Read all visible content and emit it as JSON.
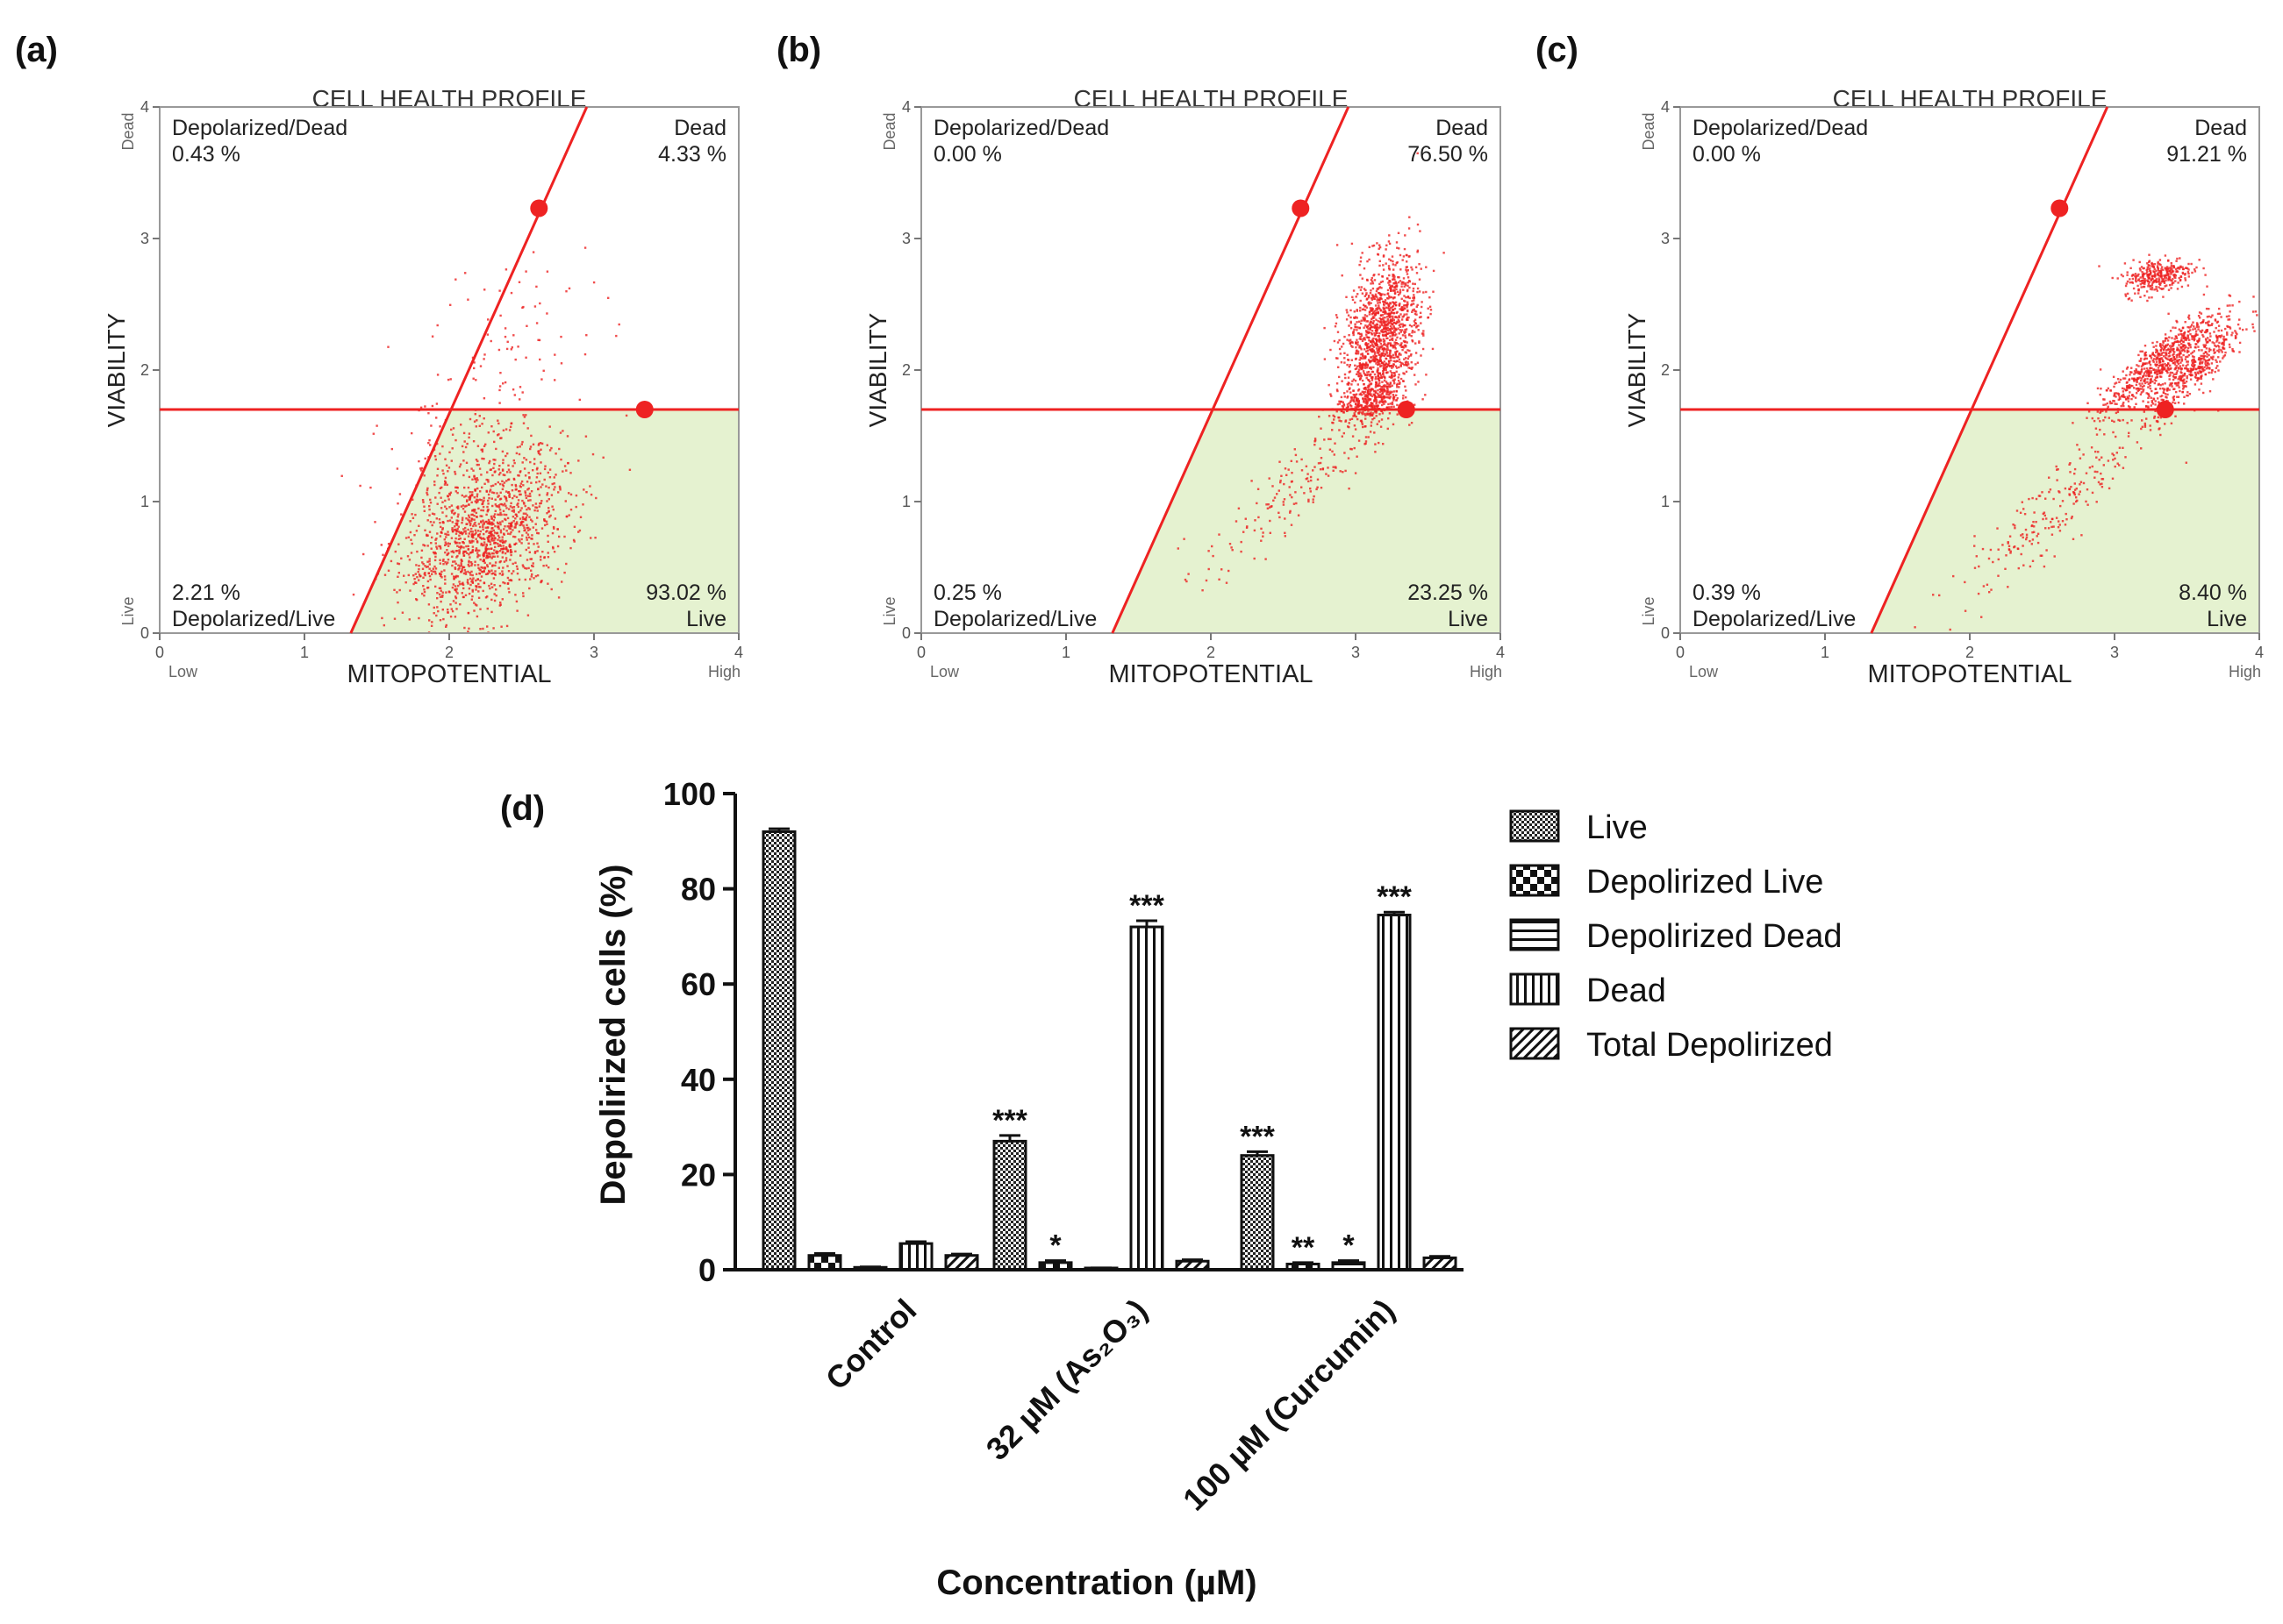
{
  "colors": {
    "red": "#ee2222",
    "live_fill": "#e5f2d0",
    "axis": "#444444",
    "bar_stroke": "#111111"
  },
  "chart_data": [
    {
      "type": "scatter",
      "panel": "(a)",
      "title": "CELL HEALTH PROFILE",
      "xlabel": "MITOPOTENTIAL",
      "ylabel": "VIABILITY",
      "xlim": [
        0,
        4
      ],
      "ylim": [
        0,
        4
      ],
      "xticks": [
        "0",
        "1",
        "2",
        "3",
        "4"
      ],
      "yticks": [
        "0",
        "1",
        "2",
        "3",
        "4"
      ],
      "x_low": "Low",
      "x_high": "High",
      "y_low": "Live",
      "y_high": "Dead",
      "gate_y": 1.7,
      "gate_line": [
        [
          1.32,
          0
        ],
        [
          2.95,
          4
        ]
      ],
      "gate_markers": [
        [
          2.62,
          3.23
        ],
        [
          3.35,
          1.7
        ]
      ],
      "quadrants": {
        "top_left": {
          "label": "Depolarized/Dead",
          "value": "0.43 %"
        },
        "top_right": {
          "label": "Dead",
          "value": "4.33 %"
        },
        "bottom_left": {
          "label": "Depolarized/Live",
          "value": "2.21 %"
        },
        "bottom_right": {
          "label": "Live",
          "value": "93.02 %"
        }
      },
      "clusters": [
        {
          "cx": 2.25,
          "cy": 0.72,
          "sx": 0.28,
          "sy": 0.3,
          "n": 1300,
          "rho": 0.4
        },
        {
          "cx": 2.15,
          "cy": 1.25,
          "sx": 0.3,
          "sy": 0.35,
          "n": 200,
          "rho": 0.3
        },
        {
          "cx": 2.5,
          "cy": 2.3,
          "sx": 0.3,
          "sy": 0.35,
          "n": 70,
          "rho": 0.2
        }
      ]
    },
    {
      "type": "scatter",
      "panel": "(b)",
      "title": "CELL HEALTH PROFILE",
      "xlabel": "MITOPOTENTIAL",
      "ylabel": "VIABILITY",
      "xlim": [
        0,
        4
      ],
      "ylim": [
        0,
        4
      ],
      "xticks": [
        "0",
        "1",
        "2",
        "3",
        "4"
      ],
      "yticks": [
        "0",
        "1",
        "2",
        "3",
        "4"
      ],
      "x_low": "Low",
      "x_high": "High",
      "y_low": "Live",
      "y_high": "Dead",
      "gate_y": 1.7,
      "gate_line": [
        [
          1.32,
          0
        ],
        [
          2.95,
          4
        ]
      ],
      "gate_markers": [
        [
          2.62,
          3.23
        ],
        [
          3.35,
          1.7
        ]
      ],
      "quadrants": {
        "top_left": {
          "label": "Depolarized/Dead",
          "value": "0.00 %"
        },
        "top_right": {
          "label": "Dead",
          "value": "76.50 %"
        },
        "bottom_left": {
          "label": "Depolarized/Live",
          "value": "0.25 %"
        },
        "bottom_right": {
          "label": "Live",
          "value": "23.25 %"
        }
      },
      "clusters": [
        {
          "cx": 3.18,
          "cy": 2.25,
          "sx": 0.13,
          "sy": 0.3,
          "n": 1400,
          "rho": 0.3
        },
        {
          "cx": 3.1,
          "cy": 1.75,
          "sx": 0.12,
          "sy": 0.08,
          "n": 250,
          "rho": 0.5
        },
        {
          "cx": 2.55,
          "cy": 1.05,
          "sx": 0.3,
          "sy": 0.3,
          "n": 170,
          "rho": 0.85
        }
      ]
    },
    {
      "type": "scatter",
      "panel": "(c)",
      "title": "CELL HEALTH PROFILE",
      "xlabel": "MITOPOTENTIAL",
      "ylabel": "VIABILITY",
      "xlim": [
        0,
        4
      ],
      "ylim": [
        0,
        4
      ],
      "xticks": [
        "0",
        "1",
        "2",
        "3",
        "4"
      ],
      "yticks": [
        "0",
        "1",
        "2",
        "3",
        "4"
      ],
      "x_low": "Low",
      "x_high": "High",
      "y_low": "Live",
      "y_high": "Dead",
      "gate_y": 1.7,
      "gate_line": [
        [
          1.32,
          0
        ],
        [
          2.95,
          4
        ]
      ],
      "gate_markers": [
        [
          2.62,
          3.23
        ],
        [
          3.35,
          1.7
        ]
      ],
      "quadrants": {
        "top_left": {
          "label": "Depolarized/Dead",
          "value": "0.00 %"
        },
        "top_right": {
          "label": "Dead",
          "value": "91.21 %"
        },
        "bottom_left": {
          "label": "Depolarized/Live",
          "value": "0.39 %"
        },
        "bottom_right": {
          "label": "Live",
          "value": "8.40 %"
        }
      },
      "clusters": [
        {
          "cx": 3.3,
          "cy": 2.72,
          "sx": 0.12,
          "sy": 0.07,
          "n": 320,
          "rho": 0.3
        },
        {
          "cx": 3.3,
          "cy": 2.05,
          "sx": 0.2,
          "sy": 0.2,
          "n": 650,
          "rho": 0.9
        },
        {
          "cx": 3.55,
          "cy": 2.0,
          "sx": 0.18,
          "sy": 0.2,
          "n": 420,
          "rho": 0.9
        },
        {
          "cx": 2.6,
          "cy": 0.95,
          "sx": 0.35,
          "sy": 0.35,
          "n": 220,
          "rho": 0.9
        }
      ]
    },
    {
      "type": "bar",
      "panel": "(d)",
      "ylabel": "Depolirized cells (%)",
      "xlabel": "Concentration (µM)",
      "ylim": [
        0,
        100
      ],
      "yticks": [
        "0",
        "20",
        "40",
        "60",
        "80",
        "100"
      ],
      "categories": [
        "Control",
        "32 µM (As₂O₃)",
        "100 µM (Curcumin)"
      ],
      "series": [
        {
          "name": "Live",
          "pattern": "dots",
          "values": [
            92,
            27,
            24
          ],
          "errors": [
            0.6,
            1.2,
            0.8
          ],
          "sig": [
            "",
            "***",
            "***"
          ]
        },
        {
          "name": "Depolirized Live",
          "pattern": "check",
          "values": [
            3,
            1.5,
            1.2
          ],
          "errors": [
            0.4,
            0.4,
            0.3
          ],
          "sig": [
            "",
            "*",
            "**"
          ]
        },
        {
          "name": "Depolirized Dead",
          "pattern": "hlines",
          "values": [
            0.5,
            0.3,
            1.5
          ],
          "errors": [
            0.1,
            0.1,
            0.4
          ],
          "sig": [
            "",
            "",
            "*"
          ]
        },
        {
          "name": "Dead",
          "pattern": "vlines",
          "values": [
            5.5,
            72,
            74.5
          ],
          "errors": [
            0.4,
            1.3,
            0.6
          ],
          "sig": [
            "",
            "***",
            "***"
          ]
        },
        {
          "name": "Total Depolirized",
          "pattern": "diag",
          "values": [
            3,
            1.8,
            2.5
          ],
          "errors": [
            0.3,
            0.3,
            0.3
          ],
          "sig": [
            "",
            "",
            ""
          ]
        }
      ]
    }
  ]
}
